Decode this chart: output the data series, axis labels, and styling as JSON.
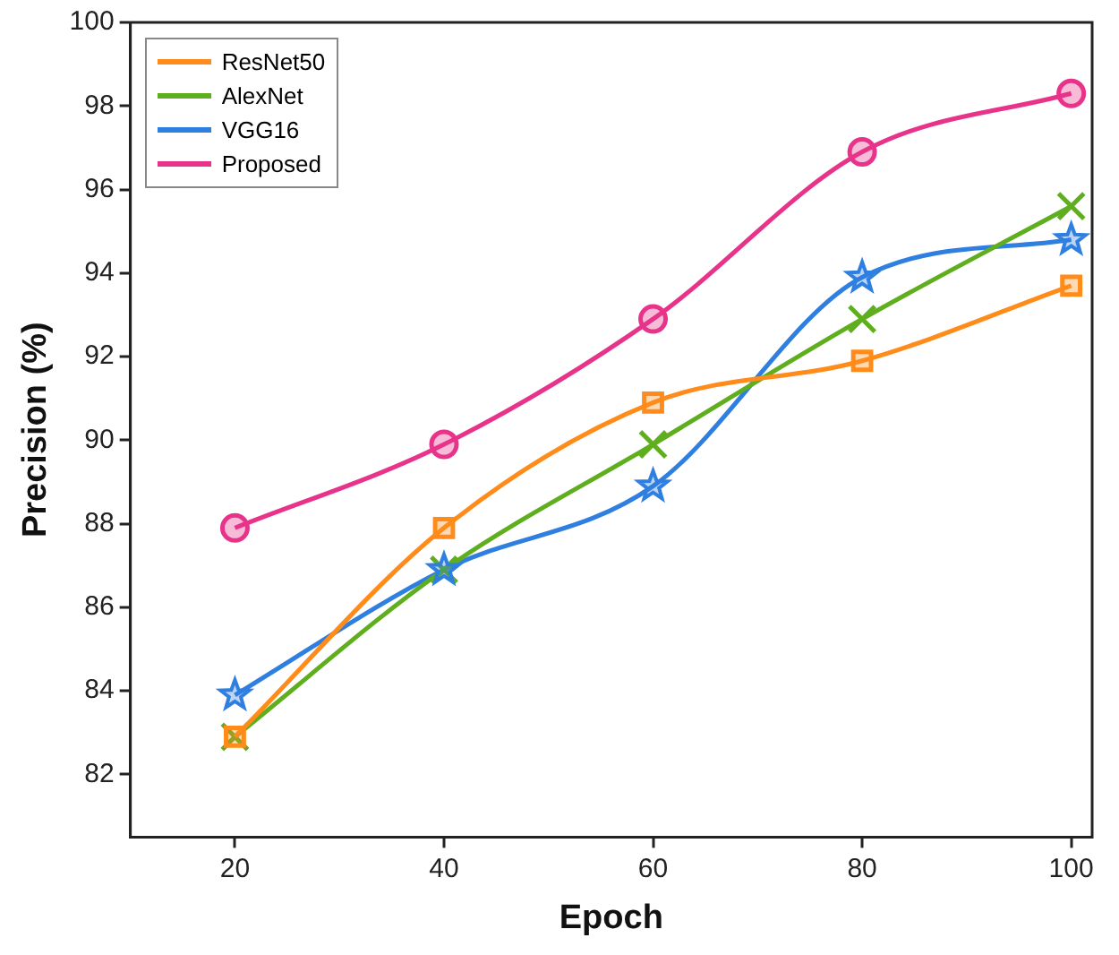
{
  "chart_data": {
    "type": "line",
    "xlabel": "Epoch",
    "ylabel": "Precision (%)",
    "x": [
      20,
      40,
      60,
      80,
      100
    ],
    "series": [
      {
        "name": "ResNet50",
        "color": "#ff8c1a",
        "marker": "square",
        "values": [
          82.9,
          87.9,
          90.9,
          91.9,
          93.7
        ]
      },
      {
        "name": "AlexNet",
        "color": "#5fae1e",
        "marker": "cross",
        "values": [
          82.9,
          86.9,
          89.9,
          92.9,
          95.6
        ]
      },
      {
        "name": "VGG16",
        "color": "#2f7fe0",
        "marker": "star",
        "values": [
          83.9,
          86.9,
          88.9,
          93.9,
          94.8
        ]
      },
      {
        "name": "Proposed",
        "color": "#e8338a",
        "marker": "circle",
        "values": [
          87.9,
          89.9,
          92.9,
          96.9,
          98.3
        ]
      }
    ],
    "xlim": [
      10,
      102
    ],
    "xticks": [
      20,
      40,
      60,
      80,
      100
    ],
    "ylim": [
      80.5,
      100
    ],
    "yticks": [
      82,
      84,
      86,
      88,
      90,
      92,
      94,
      96,
      98,
      100
    ],
    "grid": false,
    "legend": "top left",
    "line_style": "solid"
  }
}
